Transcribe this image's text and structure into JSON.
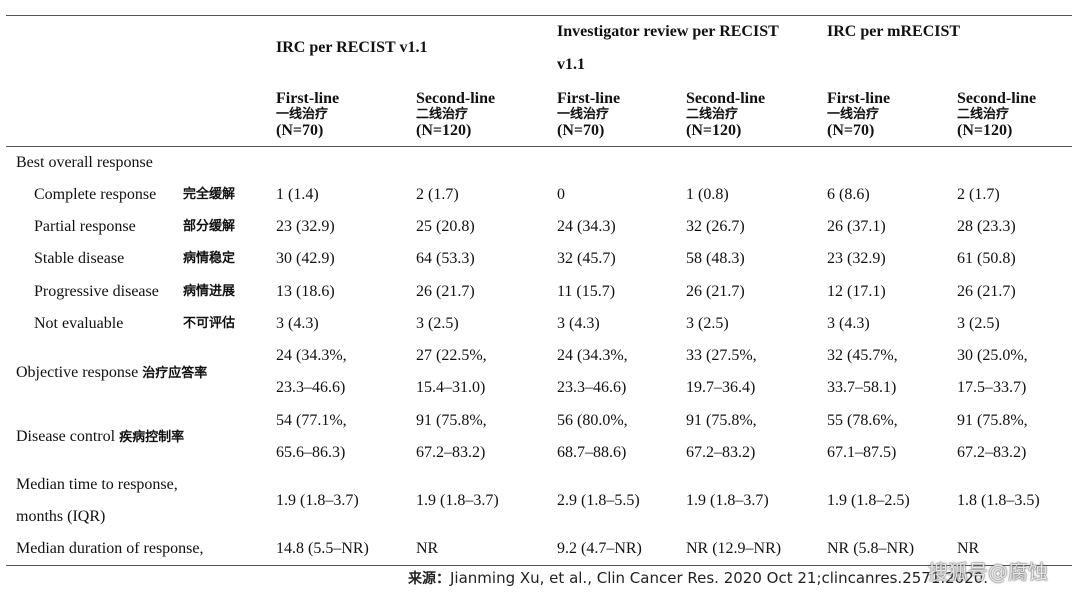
{
  "header": {
    "groups": [
      {
        "label_line1": "IRC per RECIST v1.1",
        "label_line2": ""
      },
      {
        "label_line1": "Investigator review per RECIST",
        "label_line2": "v1.1"
      },
      {
        "label_line1": "IRC per mRECIST",
        "label_line2": ""
      }
    ],
    "subcols": [
      {
        "line": "First-line",
        "zh": "一线治疗",
        "n": "(N=70)"
      },
      {
        "line": "Second-line",
        "zh": "二线治疗",
        "n": "(N=120)"
      },
      {
        "line": "First-line",
        "zh": "一线治疗",
        "n": "(N=70)"
      },
      {
        "line": "Second-line",
        "zh": "二线治疗",
        "n": "(N=120)"
      },
      {
        "line": "First-line",
        "zh": "一线治疗",
        "n": "(N=70)"
      },
      {
        "line": "Second-line",
        "zh": "二线治疗",
        "n": "(N=120)"
      }
    ]
  },
  "section_label": "Best overall response",
  "rows_simple": [
    {
      "label": "Complete response",
      "zh": "完全缓解",
      "values": [
        "1 (1.4)",
        "2 (1.7)",
        "0",
        "1 (0.8)",
        "6 (8.6)",
        "2 (1.7)"
      ]
    },
    {
      "label": "Partial response",
      "zh": "部分缓解",
      "values": [
        "23 (32.9)",
        "25 (20.8)",
        "24 (34.3)",
        "32 (26.7)",
        "26 (37.1)",
        "28 (23.3)"
      ]
    },
    {
      "label": "Stable disease",
      "zh": "病情稳定",
      "values": [
        "30 (42.9)",
        "64 (53.3)",
        "32 (45.7)",
        "58 (48.3)",
        "23 (32.9)",
        "61 (50.8)"
      ]
    },
    {
      "label": "Progressive disease",
      "zh": "病情进展",
      "values": [
        "13 (18.6)",
        "26 (21.7)",
        "11 (15.7)",
        "26 (21.7)",
        "12 (17.1)",
        "26 (21.7)"
      ]
    },
    {
      "label": "Not evaluable",
      "zh": "不可评估",
      "values": [
        "3 (4.3)",
        "3 (2.5)",
        "3 (4.3)",
        "3 (2.5)",
        "3 (4.3)",
        "3 (2.5)"
      ]
    }
  ],
  "rows_double": [
    {
      "label": "Objective response",
      "zh": "治疗应答率",
      "line1": [
        "24 (34.3%,",
        "27 (22.5%,",
        "24 (34.3%,",
        "33 (27.5%,",
        "32 (45.7%,",
        "30 (25.0%,"
      ],
      "line2": [
        "23.3–46.6)",
        "15.4–31.0)",
        "23.3–46.6)",
        "19.7–36.4)",
        "33.7–58.1)",
        "17.5–33.7)"
      ]
    },
    {
      "label": "Disease control",
      "zh": "疾病控制率",
      "line1": [
        "54 (77.1%,",
        "91 (75.8%,",
        "56 (80.0%,",
        "91 (75.8%,",
        "55 (78.6%,",
        "91 (75.8%,"
      ],
      "line2": [
        "65.6–86.3)",
        "67.2–83.2)",
        "68.7–88.6)",
        "67.2–83.2)",
        "67.1–87.5)",
        "67.2–83.2)"
      ]
    }
  ],
  "median_time": {
    "label_line1": "Median time to response,",
    "label_line2": "months (IQR)",
    "values": [
      "1.9 (1.8–3.7)",
      "1.9 (1.8–3.7)",
      "2.9 (1.8–5.5)",
      "1.9 (1.8–3.7)",
      "1.9 (1.8–2.5)",
      "1.8 (1.8–3.5)"
    ]
  },
  "median_duration": {
    "label": "Median duration of response,",
    "values": [
      "14.8 (5.5–NR)",
      "NR",
      "9.2 (4.7–NR)",
      "NR (12.9–NR)",
      "NR (5.8–NR)",
      "NR"
    ]
  },
  "footer": {
    "prefix": "来源：",
    "text": "Jianming Xu, et al., Clin Cancer Res. 2020 Oct 21;clincanres.2571.2020."
  },
  "watermark": "搜狐号@腐蚀"
}
